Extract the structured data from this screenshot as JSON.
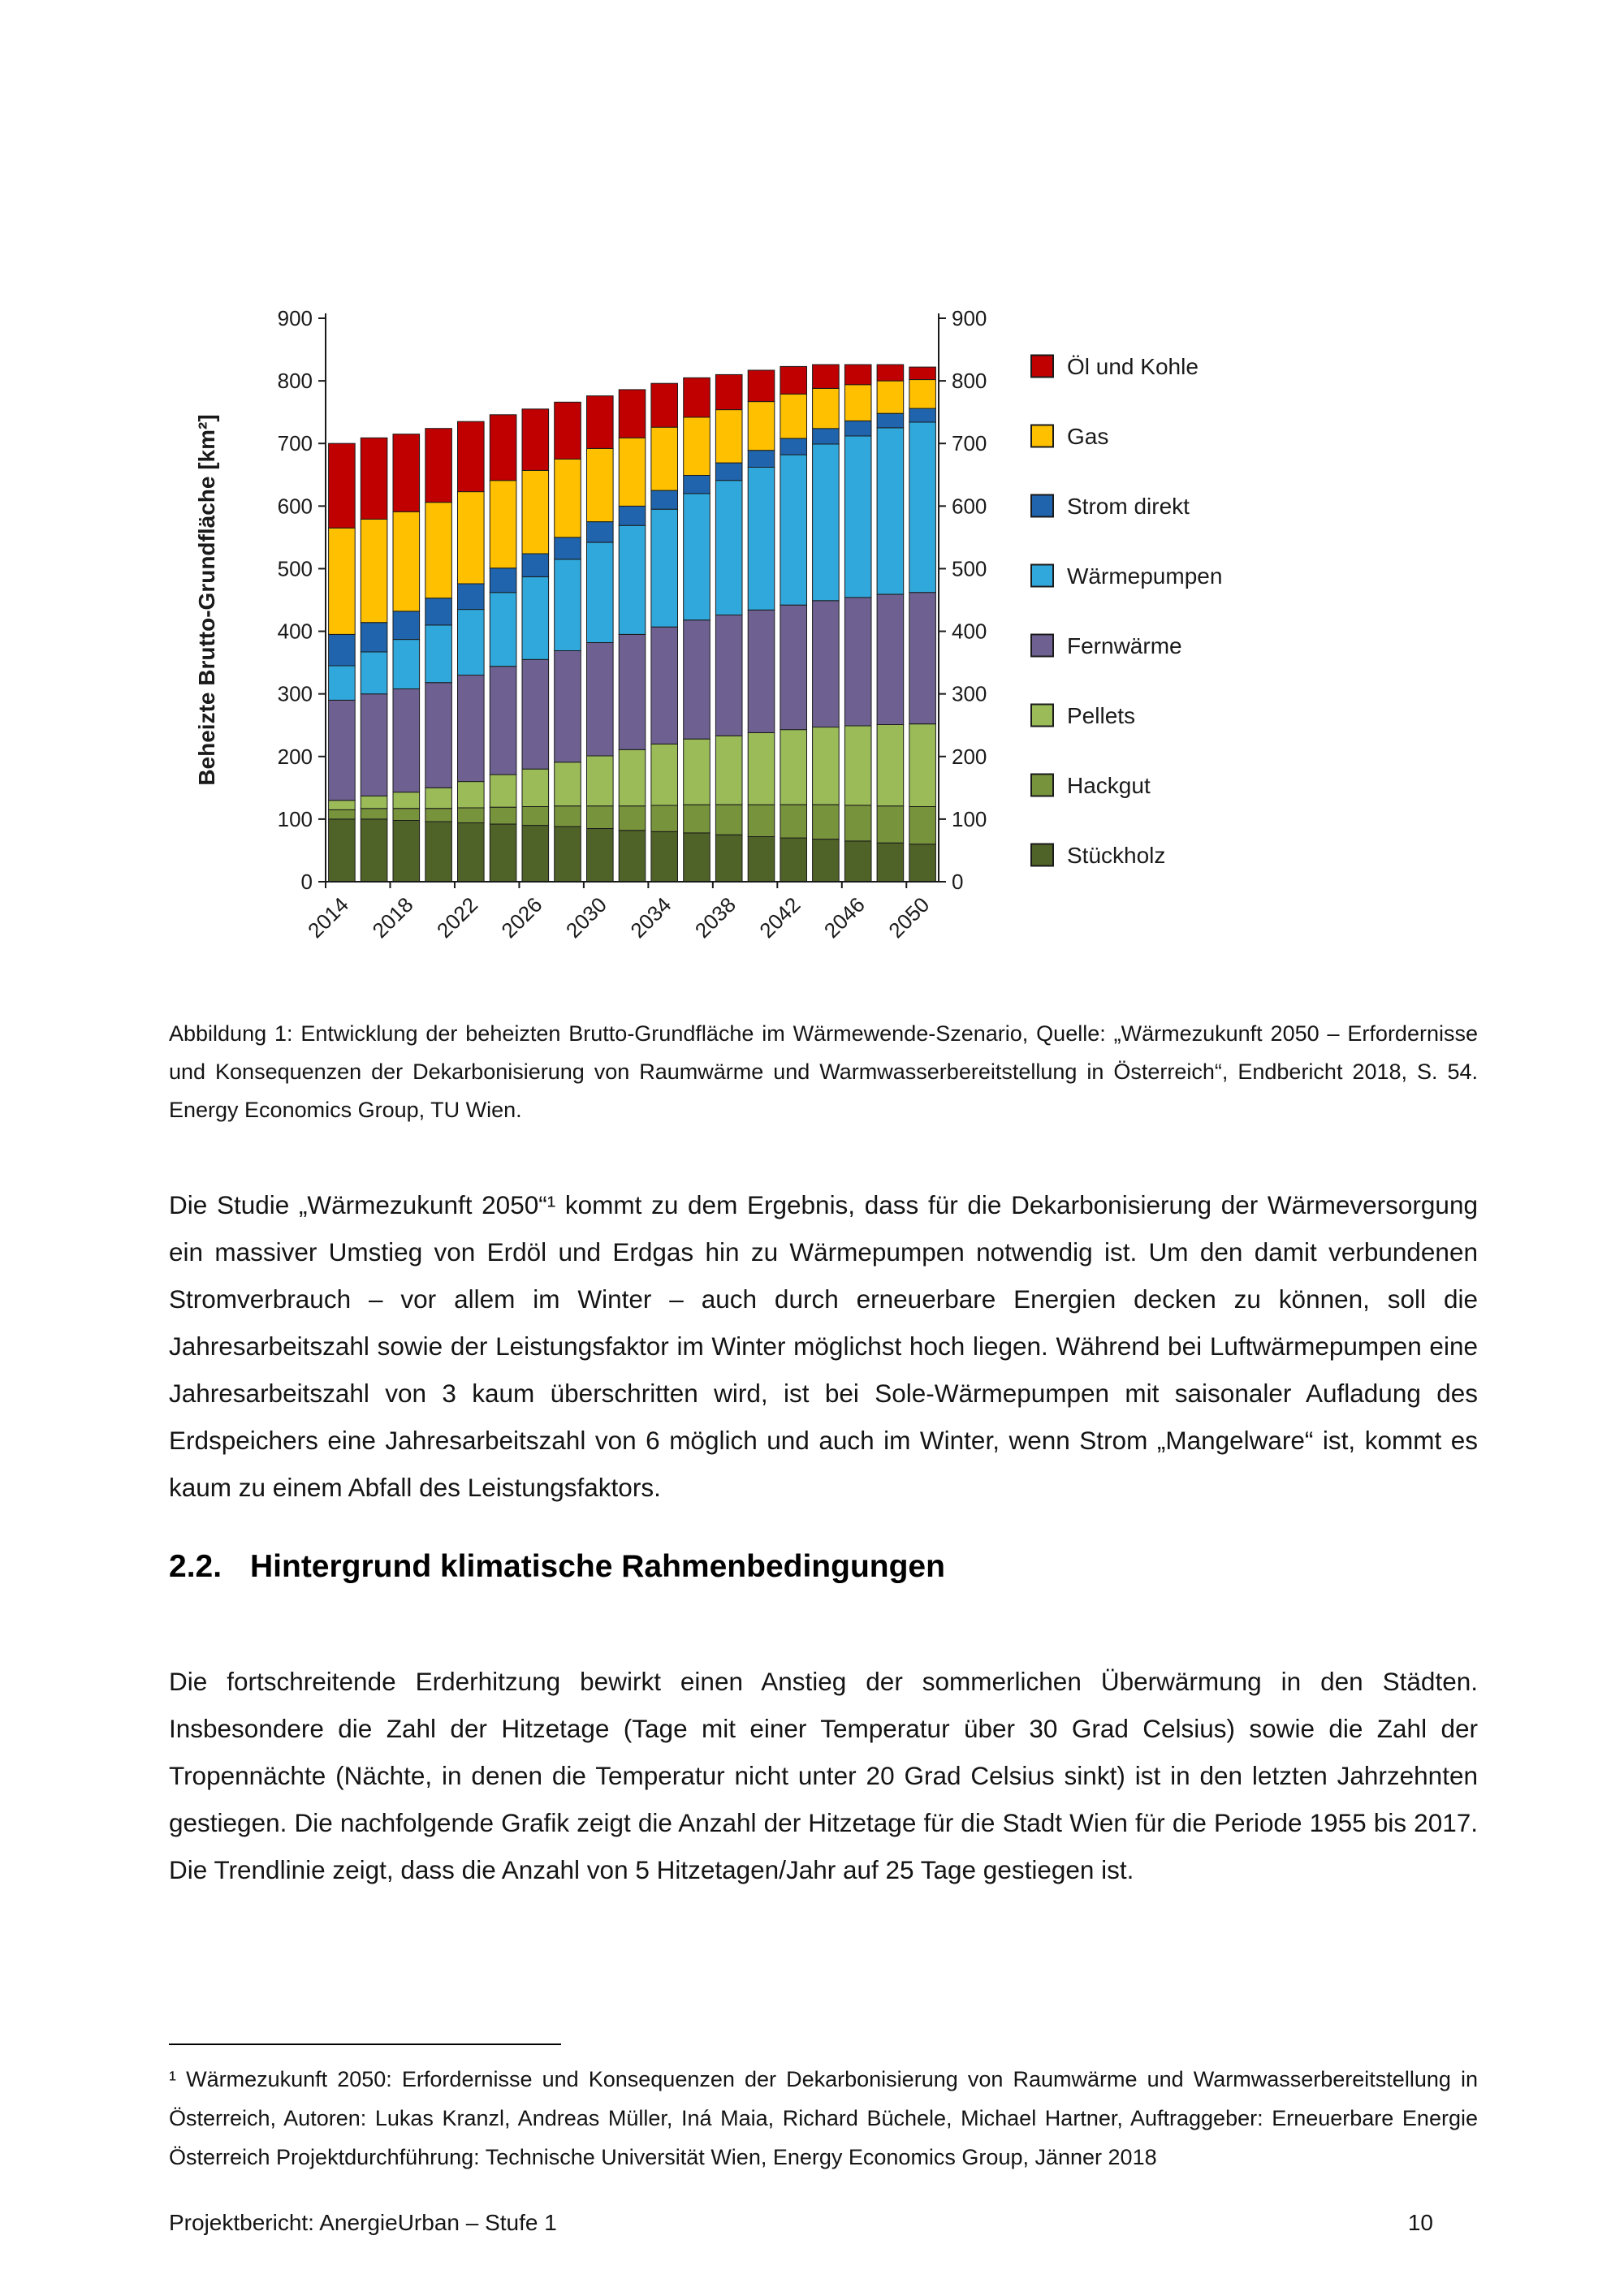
{
  "caption": "Abbildung 1: Entwicklung der beheizten Brutto-Grundfläche im Wärmewende-Szenario, Quelle: „Wärmezukunft 2050 – Erfordernisse und Konsequenzen der Dekarbonisierung von Raumwärme und Warmwasserbereitstellung in Österreich“, Endbericht 2018, S. 54. Energy Economics Group, TU Wien.",
  "paragraph1": "Die Studie „Wärmezukunft 2050“¹ kommt zu dem Ergebnis, dass für die Dekarbonisierung der Wärmeversorgung ein massiver Umstieg von Erdöl und Erdgas hin zu Wärmepumpen notwendig ist. Um den damit verbundenen Stromverbrauch – vor allem im Winter – auch durch erneuerbare Energien decken zu können, soll die Jahresarbeitszahl sowie der Leistungsfaktor im Winter möglichst hoch liegen. Während bei Luftwärmepumpen eine Jahresarbeitszahl von 3 kaum überschritten wird, ist bei Sole-Wärmepumpen mit saisonaler Aufladung des Erdspeichers eine Jahresarbeitszahl von 6 möglich und auch im Winter, wenn Strom „Mangelware“ ist, kommt es kaum zu einem Abfall des Leistungsfaktors.",
  "heading": {
    "number": "2.2.",
    "text": "Hintergrund klimatische Rahmenbedingungen"
  },
  "paragraph2": "Die fortschreitende Erderhitzung bewirkt einen Anstieg der sommerlichen Überwärmung in den Städten. Insbesondere die Zahl der Hitzetage (Tage mit einer Temperatur über 30 Grad Celsius) sowie die Zahl der Tropennächte (Nächte, in denen die Temperatur nicht unter 20 Grad Celsius sinkt) ist in den letzten Jahrzehnten gestiegen. Die nachfolgende Grafik zeigt die Anzahl der Hitzetage für die Stadt Wien für die Periode 1955 bis 2017. Die Trendlinie zeigt, dass die Anzahl von 5 Hitzetagen/Jahr auf 25 Tage gestiegen ist.",
  "footnote": "¹ Wärmezukunft 2050: Erfordernisse und Konsequenzen der Dekarbonisierung von Raumwärme und Warmwasserbereitstellung in Österreich, Autoren: Lukas Kranzl, Andreas Müller, Iná Maia, Richard Büchele, Michael Hartner, Auftraggeber: Erneuerbare Energie Österreich Projektdurchführung: Technische Universität Wien, Energy Economics Group, Jänner 2018",
  "footer": {
    "left": "Projektbericht: AnergieUrban – Stufe 1",
    "page": "10"
  },
  "chart_data": {
    "type": "bar",
    "stacked": true,
    "title": "",
    "xlabel": "",
    "ylabel": "Beheizte Brutto-Grundfläche [km²]",
    "ylim": [
      0,
      900
    ],
    "ytick_step": 100,
    "grid": false,
    "legend_position": "right",
    "x": [
      2014,
      2016,
      2018,
      2020,
      2022,
      2024,
      2026,
      2028,
      2030,
      2032,
      2034,
      2036,
      2038,
      2040,
      2042,
      2044,
      2046,
      2048,
      2050
    ],
    "xtick_labels": [
      "2014",
      "2018",
      "2022",
      "2026",
      "2030",
      "2034",
      "2038",
      "2042",
      "2046",
      "2050"
    ],
    "series_order_note": "bottom to top of stack",
    "series": [
      {
        "name": "Stückholz",
        "color": "#4F6228",
        "values": [
          100,
          100,
          98,
          96,
          94,
          92,
          90,
          88,
          85,
          82,
          80,
          78,
          75,
          72,
          70,
          68,
          65,
          62,
          60
        ]
      },
      {
        "name": "Hackgut",
        "color": "#77933C",
        "values": [
          15,
          17,
          19,
          21,
          24,
          27,
          30,
          33,
          36,
          39,
          42,
          45,
          48,
          51,
          53,
          55,
          57,
          59,
          60
        ]
      },
      {
        "name": "Pellets",
        "color": "#9BBB59",
        "values": [
          15,
          20,
          26,
          33,
          42,
          52,
          60,
          70,
          80,
          90,
          98,
          105,
          110,
          115,
          120,
          124,
          127,
          130,
          132
        ]
      },
      {
        "name": "Fernwärme",
        "color": "#6E6192",
        "values": [
          160,
          163,
          165,
          168,
          170,
          173,
          175,
          178,
          181,
          184,
          187,
          190,
          193,
          196,
          199,
          202,
          205,
          208,
          210
        ]
      },
      {
        "name": "Wärmepumpen",
        "color": "#31A8DC",
        "values": [
          55,
          67,
          79,
          92,
          105,
          118,
          132,
          146,
          160,
          174,
          188,
          202,
          215,
          228,
          240,
          250,
          258,
          266,
          272
        ]
      },
      {
        "name": "Strom direkt",
        "color": "#1F64AD",
        "values": [
          50,
          47,
          45,
          43,
          41,
          39,
          37,
          35,
          33,
          31,
          30,
          29,
          28,
          27,
          26,
          25,
          24,
          23,
          22
        ]
      },
      {
        "name": "Gas",
        "color": "#FFC000",
        "values": [
          170,
          165,
          159,
          153,
          147,
          140,
          133,
          125,
          117,
          109,
          101,
          93,
          85,
          78,
          71,
          64,
          58,
          52,
          46
        ]
      },
      {
        "name": "Öl und Kohle",
        "color": "#C00000",
        "values": [
          135,
          130,
          124,
          118,
          112,
          105,
          98,
          91,
          84,
          77,
          70,
          63,
          56,
          50,
          44,
          38,
          32,
          26,
          20
        ]
      }
    ]
  }
}
